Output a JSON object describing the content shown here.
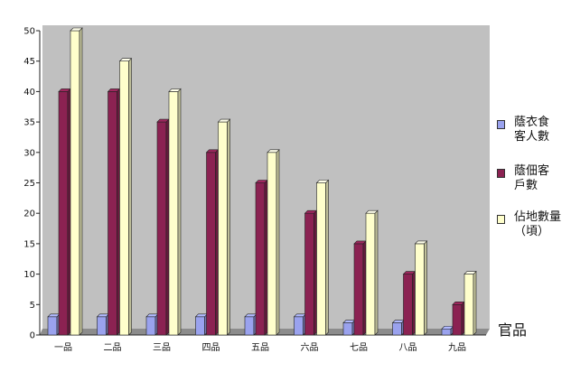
{
  "chart_data": {
    "type": "bar",
    "categories": [
      "一品",
      "二品",
      "三品",
      "四品",
      "五品",
      "六品",
      "七品",
      "八品",
      "九品"
    ],
    "series": [
      {
        "name": "蔭衣食\n客人數",
        "values": [
          3,
          3,
          3,
          3,
          3,
          3,
          2,
          2,
          1
        ],
        "color": "#9aa2ee"
      },
      {
        "name": "蔭佃客\n戶數",
        "values": [
          40,
          40,
          35,
          30,
          25,
          20,
          15,
          10,
          5
        ],
        "color": "#8b2252"
      },
      {
        "name": "佔地數量\n（頃）",
        "values": [
          50,
          45,
          40,
          35,
          30,
          25,
          20,
          15,
          10
        ],
        "color": "#ffffcc"
      }
    ],
    "ylim": [
      0,
      50
    ],
    "yticks": [
      0,
      5,
      10,
      15,
      20,
      25,
      30,
      35,
      40,
      45,
      50
    ],
    "xlabel": "官品",
    "legend_position": "right",
    "plot_background": "#c0c0c0",
    "grid": false
  }
}
